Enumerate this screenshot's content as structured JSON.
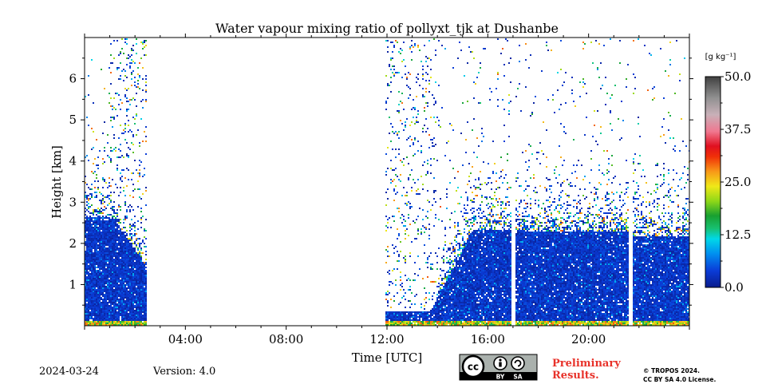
{
  "chart_data": {
    "type": "heatmap",
    "title": "Water vapour mixing ratio of pollyxt_tjk at Dushanbe",
    "xlabel": "Time [UTC]",
    "ylabel": "Height [km]",
    "x_range_hours": [
      0,
      24
    ],
    "y_range_km": [
      0,
      7
    ],
    "x_ticks": [
      {
        "hour": 4,
        "label": "04:00"
      },
      {
        "hour": 8,
        "label": "08:00"
      },
      {
        "hour": 12,
        "label": "12:00"
      },
      {
        "hour": 16,
        "label": "16:00"
      },
      {
        "hour": 20,
        "label": "20:00"
      }
    ],
    "y_ticks": [
      {
        "km": 1,
        "label": "1"
      },
      {
        "km": 2,
        "label": "2"
      },
      {
        "km": 3,
        "label": "3"
      },
      {
        "km": 4,
        "label": "4"
      },
      {
        "km": 5,
        "label": "5"
      },
      {
        "km": 6,
        "label": "6"
      }
    ],
    "colorbar": {
      "unit_label": "[g kg⁻¹]",
      "min": 0.0,
      "max": 50.0,
      "ticks": [
        {
          "value": 0.0,
          "label": "0.0"
        },
        {
          "value": 12.5,
          "label": "12.5"
        },
        {
          "value": 25.0,
          "label": "25.0"
        },
        {
          "value": 37.5,
          "label": "37.5"
        },
        {
          "value": 50.0,
          "label": "50.0"
        }
      ],
      "stops": [
        {
          "value": 0.0,
          "color": "#0a1c8c"
        },
        {
          "value": 4.0,
          "color": "#0a3cd8"
        },
        {
          "value": 8.0,
          "color": "#0090f0"
        },
        {
          "value": 11.5,
          "color": "#00d8e8"
        },
        {
          "value": 14.0,
          "color": "#18c070"
        },
        {
          "value": 17.0,
          "color": "#18a030"
        },
        {
          "value": 20.5,
          "color": "#90d818"
        },
        {
          "value": 24.0,
          "color": "#f0e818"
        },
        {
          "value": 27.5,
          "color": "#f89818"
        },
        {
          "value": 31.0,
          "color": "#f03008"
        },
        {
          "value": 33.5,
          "color": "#e01020"
        },
        {
          "value": 37.0,
          "color": "#f07890"
        },
        {
          "value": 41.0,
          "color": "#c8b0b8"
        },
        {
          "value": 45.0,
          "color": "#909090"
        },
        {
          "value": 50.0,
          "color": "#404040"
        }
      ]
    },
    "observation_segments": [
      {
        "start_hour": 0.0,
        "end_hour": 2.45,
        "dense_top_km": 2.6,
        "sparse_top_km": 7.0
      },
      {
        "start_hour": 11.95,
        "end_hour": 16.9,
        "dense_top_km": 2.3,
        "sparse_top_km": 7.0
      },
      {
        "start_hour": 17.1,
        "end_hour": 21.55,
        "dense_top_km": 2.3,
        "sparse_top_km": 7.0
      },
      {
        "start_hour": 21.75,
        "end_hour": 24.0,
        "dense_top_km": 2.2,
        "sparse_top_km": 7.0
      }
    ],
    "data_gaps_hours": [
      [
        2.45,
        11.95
      ],
      [
        16.9,
        17.1
      ],
      [
        21.55,
        21.75
      ]
    ]
  },
  "footer": {
    "date": "2024-03-24",
    "version": "Version: 4.0",
    "license_badge": {
      "cc": "cc",
      "by": "BY",
      "sa": "SA"
    },
    "preliminary_line1": "Preliminary",
    "preliminary_line2": "Results.",
    "copyright_line1": "© TROPOS 2024.",
    "copyright_line2": "CC BY SA 4.0 License."
  },
  "colors": {
    "preliminary_text": "#e8322a",
    "license_badge_bg": "#aab1ad",
    "license_badge_band": "#000000"
  }
}
